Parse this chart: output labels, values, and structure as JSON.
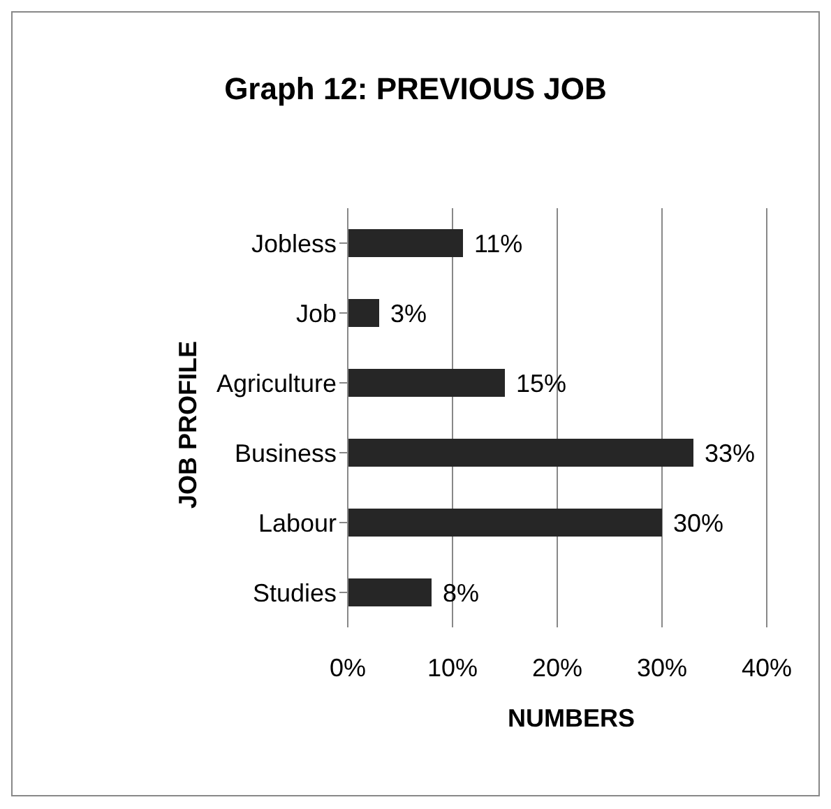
{
  "chart_data": {
    "type": "bar",
    "orientation": "horizontal",
    "title": "Graph 12: PREVIOUS JOB",
    "xlabel": "NUMBERS",
    "ylabel": "JOB PROFILE",
    "categories": [
      "Jobless",
      "Job",
      "Agriculture",
      "Business",
      "Labour",
      "Studies"
    ],
    "values": [
      11,
      3,
      15,
      33,
      30,
      8
    ],
    "value_labels": [
      "11%",
      "3%",
      "15%",
      "33%",
      "30%",
      "8%"
    ],
    "color": "#262626",
    "xlim": [
      0,
      40
    ],
    "xticks": [
      {
        "value": 0,
        "label": "0%"
      },
      {
        "value": 10,
        "label": "10%"
      },
      {
        "value": 20,
        "label": "20%"
      },
      {
        "value": 30,
        "label": "30%"
      },
      {
        "value": 40,
        "label": "40%"
      }
    ],
    "grid": "x",
    "legend": false
  }
}
